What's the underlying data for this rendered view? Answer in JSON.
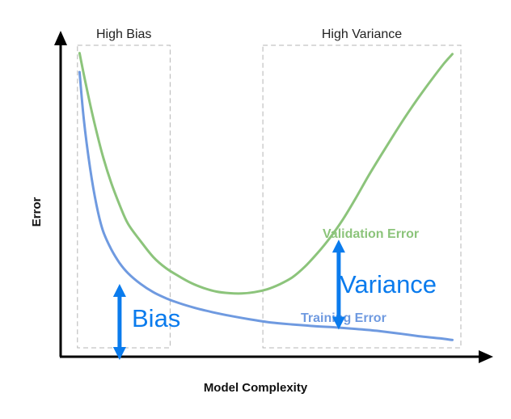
{
  "chart_data": {
    "type": "line",
    "title": "",
    "xlabel": "Model Complexity",
    "ylabel": "Error",
    "xlim": [
      0,
      100
    ],
    "ylim": [
      0,
      100
    ],
    "grid": false,
    "x_tick_labels": false,
    "y_tick_labels": false,
    "regions": [
      {
        "label": "High Bias",
        "x_range": [
          4,
          26
        ]
      },
      {
        "label": "High Variance",
        "x_range": [
          48,
          95
        ]
      }
    ],
    "series": [
      {
        "name": "Validation Error",
        "color": "#8cc47b",
        "x": [
          4.5,
          6,
          8,
          10,
          12,
          14,
          16,
          19,
          22,
          25,
          28,
          31,
          34,
          37,
          40,
          43,
          46,
          49,
          52,
          55,
          58,
          61,
          64,
          67,
          70,
          73,
          76,
          79,
          82,
          85,
          88,
          91,
          93
        ],
        "y": [
          96,
          86,
          74,
          63.5,
          55,
          48,
          42,
          36.5,
          31.5,
          28,
          25.5,
          23.3,
          21.7,
          20.6,
          20.1,
          20,
          20.4,
          21.3,
          22.9,
          25.1,
          28.5,
          32.8,
          37.7,
          43.4,
          50,
          57,
          63.6,
          70,
          76.2,
          82,
          87.5,
          92.7,
          95.7
        ]
      },
      {
        "name": "Training Error",
        "color": "#6f9ae0",
        "x": [
          4.5,
          5.5,
          7,
          8.5,
          10,
          12,
          14,
          16,
          19,
          22,
          25,
          28,
          32,
          36,
          40,
          45,
          50,
          55,
          60,
          65,
          70,
          75,
          80,
          85,
          90,
          93
        ],
        "y": [
          90,
          75,
          59.5,
          48,
          40,
          34,
          29.6,
          26.4,
          23,
          20.4,
          18.5,
          17,
          15.4,
          14.1,
          13,
          11.8,
          10.8,
          10.2,
          9.7,
          9.3,
          8.8,
          8.2,
          7.4,
          6.5,
          5.8,
          5.3
        ]
      }
    ],
    "annotations": [
      {
        "text": "Bias",
        "type": "double-arrow",
        "color": "#0a7bed",
        "x": 14,
        "y_range": [
          0,
          22
        ]
      },
      {
        "text": "Variance",
        "type": "double-arrow",
        "color": "#0a7bed",
        "x": 66,
        "y_range": [
          9.6,
          36
        ]
      }
    ]
  }
}
